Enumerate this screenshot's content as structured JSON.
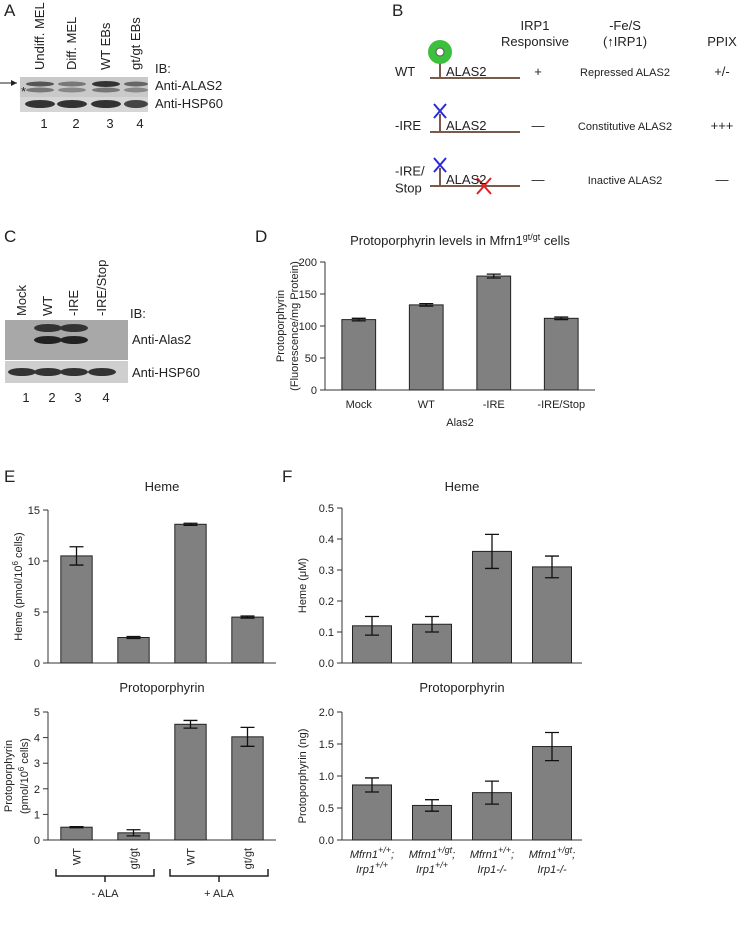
{
  "panels": {
    "A": {
      "label": "A",
      "lanes": [
        "Undiff. MEL",
        "Diff. MEL",
        "WT EBs",
        "gt/gt EBs"
      ],
      "ib": "IB:",
      "antibodies": [
        "Anti-ALAS2",
        "Anti-HSP60"
      ],
      "lane_numbers": [
        1,
        2,
        3,
        4
      ],
      "marker": "*"
    },
    "B": {
      "label": "B",
      "headers": {
        "irp1": [
          "IRP1",
          "Responsive"
        ],
        "fes": [
          "-Fe/S",
          "(↑IRP1)"
        ],
        "ppix": "PPIX"
      },
      "rows": [
        {
          "name": [
            "WT"
          ],
          "gene": "ALAS2",
          "irp1": "+",
          "fes": "Repressed ALAS2",
          "ppix": "+/-"
        },
        {
          "name": [
            "-IRE"
          ],
          "gene": "ALAS2",
          "irp1": "—",
          "fes": "Constitutive ALAS2",
          "ppix": "+++"
        },
        {
          "name": [
            "-IRE/",
            "Stop"
          ],
          "gene": "ALAS2",
          "irp1": "—",
          "fes": "Inactive ALAS2",
          "ppix": "—"
        }
      ]
    },
    "C": {
      "label": "C",
      "lanes": [
        "Mock",
        "WT",
        "-IRE",
        "-IRE/Stop"
      ],
      "ib": "IB:",
      "antibodies": [
        "Anti-Alas2",
        "Anti-HSP60"
      ],
      "lane_numbers": [
        1,
        2,
        3,
        4
      ]
    },
    "D": {
      "label": "D"
    },
    "E": {
      "label": "E"
    },
    "F": {
      "label": "F"
    }
  },
  "chart_data": [
    {
      "type": "bar",
      "title": [
        [
          "Protoporphyrin levels in Mfrn1",
          "gt/gt",
          " cells"
        ]
      ],
      "ylabel": [
        [
          "Protoporphyrin"
        ],
        [
          "(Fluorescence/mg Protein)"
        ]
      ],
      "xlabel": "Alas2",
      "categories": [
        "Mock",
        "WT",
        "-IRE",
        "-IRE/Stop"
      ],
      "values": [
        110,
        133,
        178,
        112
      ],
      "errors": [
        2,
        2,
        3,
        2
      ],
      "color": "#808080",
      "ylim": [
        0,
        200
      ],
      "yticks": [
        0,
        50,
        100,
        150,
        200
      ]
    },
    {
      "type": "bar",
      "title": "Heme",
      "ylabel": [
        [
          "Heme (pmol/10",
          "6",
          " cells)"
        ]
      ],
      "categories": [
        null,
        null,
        null,
        null
      ],
      "values": [
        10.5,
        2.5,
        13.6,
        4.5
      ],
      "errors": [
        0.9,
        0.1,
        0.1,
        0.1
      ],
      "color": "#808080",
      "ylim": [
        0,
        15
      ],
      "yticks": [
        0,
        5,
        10,
        15
      ]
    },
    {
      "type": "bar",
      "title": "Protoporphyrin",
      "ylabel": [
        [
          "Protoporphyrin"
        ],
        [
          "(pmol/10",
          "6",
          " cells)"
        ]
      ],
      "categories": [
        "WT",
        "gt/gt",
        "WT",
        "gt/gt"
      ],
      "groups": [
        "- ALA",
        "+ ALA"
      ],
      "values": [
        0.5,
        0.28,
        4.52,
        4.03
      ],
      "errors": [
        0.02,
        0.12,
        0.15,
        0.37
      ],
      "color": "#808080",
      "ylim": [
        0,
        5
      ],
      "yticks": [
        0,
        1,
        2,
        3,
        4,
        5
      ]
    },
    {
      "type": "bar",
      "title": "Heme",
      "ylabel": [
        [
          "Heme (μM)"
        ]
      ],
      "categories": [
        null,
        null,
        null,
        null
      ],
      "values": [
        0.12,
        0.125,
        0.36,
        0.31
      ],
      "errors": [
        0.03,
        0.025,
        0.055,
        0.035
      ],
      "color": "#808080",
      "ylim": [
        0,
        0.5
      ],
      "yticks": [
        {
          "value": 0,
          "label": "0.0"
        },
        0.1,
        0.2,
        0.3,
        0.4,
        0.5
      ]
    },
    {
      "type": "bar",
      "title": "Protoporphyrin",
      "ylabel": [
        [
          "Protoporphyrin (ng)"
        ]
      ],
      "categories": [
        [
          [
            "Mfrn1",
            "+/+",
            ";"
          ],
          [
            "Irp1",
            "+/+"
          ]
        ],
        [
          [
            "Mfrn1",
            "+/gt",
            ";"
          ],
          [
            "Irp1",
            "+/+"
          ]
        ],
        [
          [
            "Mfrn1",
            "+/+",
            ";"
          ],
          [
            "Irp1-/-"
          ]
        ],
        [
          [
            "Mfrn1",
            "+/gt",
            ";"
          ],
          [
            "Irp1-/-"
          ]
        ]
      ],
      "values": [
        0.86,
        0.54,
        0.74,
        1.46
      ],
      "errors": [
        0.11,
        0.09,
        0.18,
        0.22
      ],
      "color": "#808080",
      "ylim": [
        0,
        2
      ],
      "yticks": [
        {
          "value": 0,
          "label": "0.0"
        },
        0.5,
        {
          "value": 1,
          "label": "1.0"
        },
        1.5,
        {
          "value": 2,
          "label": "2.0"
        }
      ]
    }
  ]
}
